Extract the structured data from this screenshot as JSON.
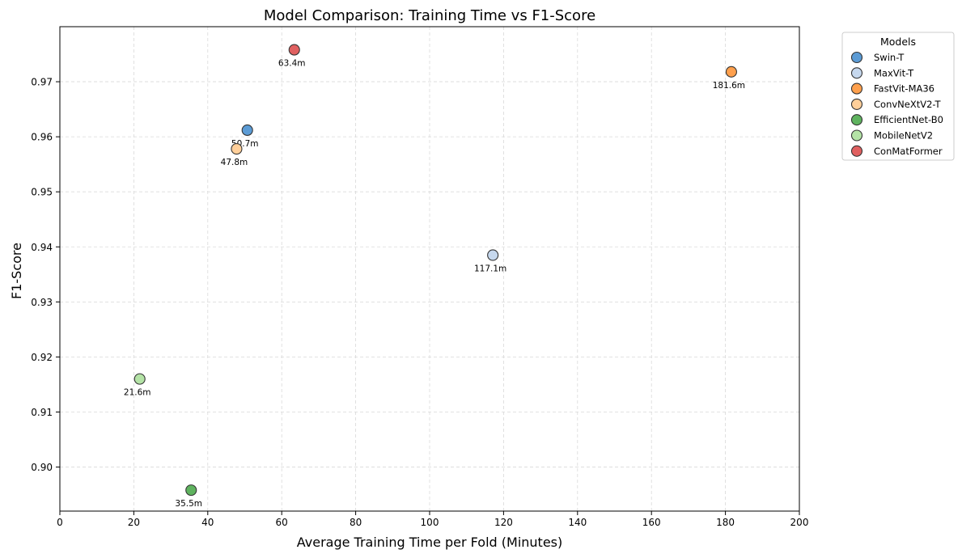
{
  "chart_data": {
    "type": "scatter",
    "title": "Model Comparison: Training Time vs F1-Score",
    "xlabel": "Average Training Time per Fold (Minutes)",
    "ylabel": "F1-Score",
    "xlim": [
      0,
      200
    ],
    "ylim": [
      0.892,
      0.98
    ],
    "xticks": [
      0,
      20,
      40,
      60,
      80,
      100,
      120,
      140,
      160,
      180,
      200
    ],
    "yticks": [
      0.9,
      0.91,
      0.92,
      0.93,
      0.94,
      0.95,
      0.96,
      0.97
    ],
    "ytick_labels": [
      "0.90",
      "0.91",
      "0.92",
      "0.93",
      "0.94",
      "0.95",
      "0.96",
      "0.97"
    ],
    "grid": true,
    "legend": {
      "title": "Models",
      "placement": "outside-top-right"
    },
    "series": [
      {
        "name": "Swin-T",
        "x": 50.7,
        "y": 0.9612,
        "label": "50.7m",
        "color": "#5b9bd5"
      },
      {
        "name": "MaxVit-T",
        "x": 117.1,
        "y": 0.9385,
        "label": "117.1m",
        "color": "#c6d8ee"
      },
      {
        "name": "FastVit-MA36",
        "x": 181.6,
        "y": 0.9718,
        "label": "181.6m",
        "color": "#ffa04d"
      },
      {
        "name": "ConvNeXtV2-T",
        "x": 47.8,
        "y": 0.9578,
        "label": "47.8m",
        "color": "#ffcf9a"
      },
      {
        "name": "EfficientNet-B0",
        "x": 35.5,
        "y": 0.8958,
        "label": "35.5m",
        "color": "#5fb35f"
      },
      {
        "name": "MobileNetV2",
        "x": 21.6,
        "y": 0.916,
        "label": "21.6m",
        "color": "#b4e3a6"
      },
      {
        "name": "ConMatFormer",
        "x": 63.4,
        "y": 0.9758,
        "label": "63.4m",
        "color": "#e06060"
      }
    ]
  }
}
